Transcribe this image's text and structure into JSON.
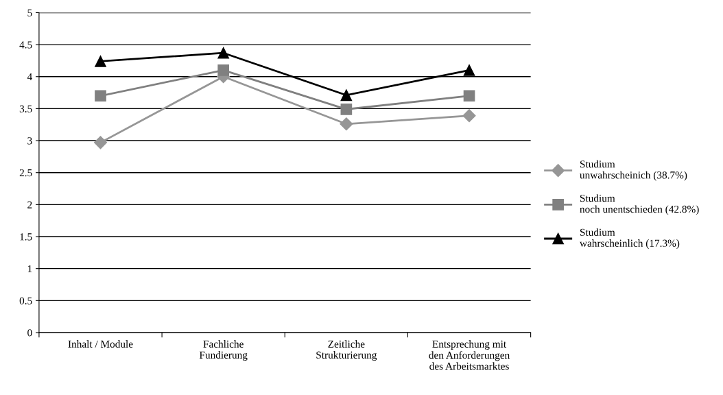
{
  "chart_data": {
    "type": "line",
    "categories": [
      "Inhalt / Module",
      "Fachliche\nFundierung",
      "Zeitliche\nStrukturierung",
      "Entsprechung mit\nden Anforderungen\ndes Arbeitsmarktes"
    ],
    "series": [
      {
        "name": "Studium\nunwahrscheinich (38.7%)",
        "color": "#969696",
        "marker": "diamond",
        "values": [
          2.97,
          4.0,
          3.26,
          3.39
        ]
      },
      {
        "name": "Studium\nnoch unentschieden (42.8%)",
        "color": "#808080",
        "marker": "square",
        "values": [
          3.7,
          4.1,
          3.49,
          3.7
        ]
      },
      {
        "name": "Studium\nwahrscheinlich (17.3%)",
        "color": "#000000",
        "marker": "triangle",
        "values": [
          4.24,
          4.37,
          3.71,
          4.1
        ]
      }
    ],
    "ylim": [
      0,
      5
    ],
    "yticks": [
      0,
      0.5,
      1,
      1.5,
      2,
      2.5,
      3,
      3.5,
      4,
      4.5,
      5
    ],
    "grid": "y",
    "legend": "right",
    "line_style": "solid"
  }
}
